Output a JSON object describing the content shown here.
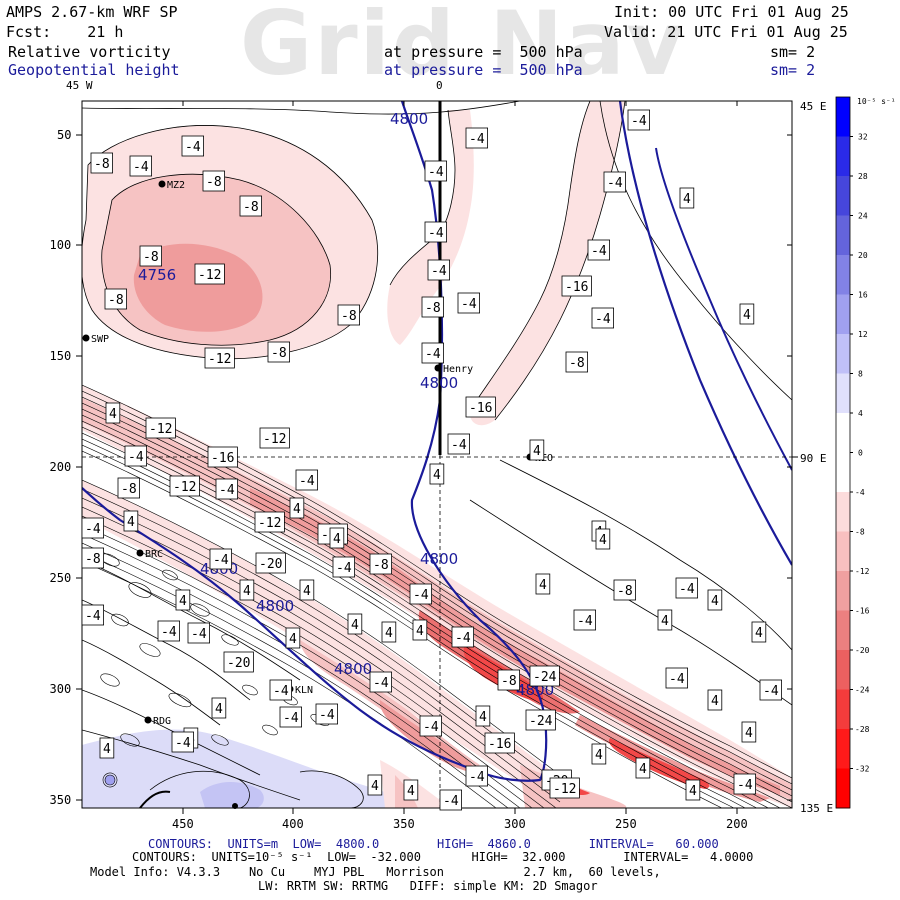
{
  "header": {
    "model": "AMPS 2.67-km WRF SP",
    "fcst": "Fcst:    21 h",
    "init": "Init: 00 UTC Fri 01 Aug 25",
    "valid": "Valid: 21 UTC Fri 01 Aug 25",
    "field1": "Relative vorticity",
    "field2": "Geopotential height",
    "pressure1": "at pressure =  500 hPa",
    "pressure2": "at pressure =  500 hPa",
    "sm1": "sm= 2",
    "sm2": "sm= 2",
    "watermark": "Grid Nav"
  },
  "axes": {
    "x_ticks": [
      "450",
      "400",
      "350",
      "300",
      "250",
      "200"
    ],
    "y_ticks": [
      "50",
      "100",
      "150",
      "200",
      "250",
      "300",
      "350"
    ],
    "top_labels": [
      "45 W",
      "0"
    ],
    "right_labels": [
      "45 E",
      "90 E",
      "135 E"
    ]
  },
  "colorbar": {
    "unit": "10⁻⁵ s⁻¹",
    "ticks": [
      "32",
      "28",
      "24",
      "20",
      "16",
      "12",
      "8",
      "4",
      "0",
      "-4",
      "-8",
      "-12",
      "-16",
      "-20",
      "-24",
      "-28",
      "-32"
    ],
    "colors": [
      "#0000ff",
      "#2a2ae8",
      "#4646dc",
      "#6464dc",
      "#8282e6",
      "#a0a0f0",
      "#c0c0f8",
      "#e0e0fc",
      "#ffffff",
      "#ffffff",
      "#fcdcdc",
      "#f8c0c0",
      "#f0a0a0",
      "#ec8080",
      "#ec6060",
      "#f43c3c",
      "#ff1a1a",
      "#ff0000"
    ]
  },
  "stations": [
    {
      "name": "MZ2"
    },
    {
      "name": "SWP"
    },
    {
      "name": "Henry"
    },
    {
      "name": "NEO"
    },
    {
      "name": "BRC"
    },
    {
      "name": "KLN"
    },
    {
      "name": "RDG"
    }
  ],
  "height_labels": [
    "4800",
    "4800",
    "4800",
    "4756",
    "4800",
    "4800",
    "4800",
    "4800"
  ],
  "vort_labels": [
    "-4",
    "-8",
    "-8",
    "-8",
    "-4",
    "-4",
    "-4",
    "-8",
    "-12",
    "-8",
    "-8",
    "-12",
    "-8",
    "-4",
    "-4",
    "-4",
    "-8",
    "-4",
    "-4",
    "-4",
    "-4",
    "-16",
    "-4",
    "-8",
    "-16",
    "-4",
    "4",
    "-12",
    "-12",
    "-16",
    "-4",
    "-12",
    "-8",
    "-4",
    "-4",
    "4",
    "4",
    "4",
    "-16",
    "-12",
    "4",
    "-4",
    "-8",
    "-4",
    "-4",
    "-4",
    "-20",
    "-4",
    "-20",
    "-4",
    "-8",
    "4",
    "-4",
    "4",
    "-24",
    "-8",
    "-4",
    "-24",
    "-16",
    "-20",
    "-12",
    "4",
    "-4",
    "-4",
    "4",
    "-4",
    "4",
    "4",
    "-4",
    "-4",
    "4",
    "4",
    "4",
    "4",
    "-8",
    "4",
    "4",
    "4",
    "-4",
    "4",
    "4",
    "-4",
    "4",
    "4",
    "4",
    "4",
    "-4",
    "-4",
    "-4",
    "4",
    "4",
    "4",
    "-4",
    "4",
    "4",
    "4",
    "4",
    "4",
    "-4",
    "-4"
  ],
  "footer": {
    "line1_contours": "CONTOURS:  UNITS=m  LOW=  4800.0        HIGH=  4860.0        INTERVAL=   60.000",
    "line2_contours": "CONTOURS:  UNITS=10⁻⁵ s⁻¹  LOW=  -32.000       HIGH=  32.000        INTERVAL=   4.0000",
    "line3": "Model Info: V4.3.3    No Cu    MYJ PBL   Morrison           2.7 km,  60 levels,",
    "line4": "LW: RRTM SW: RRTMG   DIFF: simple KM: 2D Smagor"
  }
}
